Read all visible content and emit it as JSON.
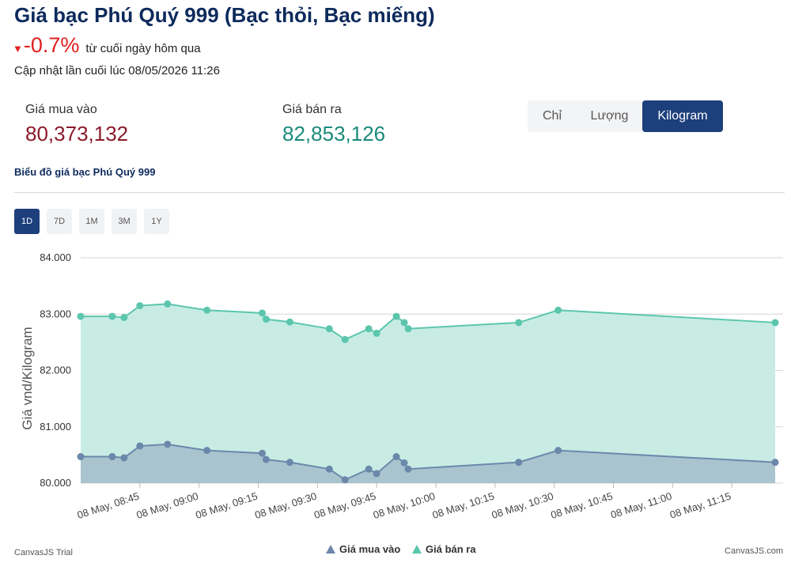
{
  "header": {
    "title": "Giá bạc Phú Quý 999 (Bạc thỏi, Bạc miếng)",
    "change_value": "-0.7%",
    "change_text": "từ cuối ngày hôm qua",
    "updated": "Cập nhật lần cuối lúc 08/05/2026 11:26"
  },
  "prices": {
    "buy_label": "Giá mua vào",
    "buy_value": "80,373,132",
    "sell_label": "Giá bán ra",
    "sell_value": "82,853,126"
  },
  "unit_switch": {
    "options": [
      "Chỉ",
      "Lượng",
      "Kilogram"
    ],
    "selected": "Kilogram"
  },
  "chart_caption": "Biểu đồ giá bạc Phú Quý 999",
  "range_buttons": {
    "options": [
      "1D",
      "7D",
      "1M",
      "3M",
      "1Y"
    ],
    "selected": "1D"
  },
  "watermarks": {
    "left": "CanvasJS Trial",
    "right": "CanvasJS.com"
  },
  "colors": {
    "buy_line": "#6b88ab",
    "buy_fill": "#a9c4cf",
    "sell_line": "#5cc6ad",
    "sell_fill": "#c8ece4",
    "accent": "#1d3f7c",
    "down": "#e02020"
  },
  "chart_data": {
    "type": "area",
    "ylabel": "Giá vnd/Kilogram",
    "ylim": [
      80000,
      84000
    ],
    "yticks": [
      "80.000",
      "81.000",
      "82.000",
      "83.000",
      "84.000"
    ],
    "ytick_values": [
      80000,
      81000,
      82000,
      83000,
      84000
    ],
    "xticks": [
      "08 May, 08:45",
      "08 May, 09:00",
      "08 May, 09:15",
      "08 May, 09:30",
      "08 May, 09:45",
      "08 May, 10:00",
      "08 May, 10:15",
      "08 May, 10:30",
      "08 May, 10:45",
      "08 May, 11:00",
      "08 May, 11:15"
    ],
    "xtick_minutes": [
      525,
      540,
      555,
      570,
      585,
      600,
      615,
      630,
      645,
      660,
      675
    ],
    "xlim": [
      "08:30",
      "11:26"
    ],
    "grid": true,
    "legend": "bottom-center",
    "x": [
      "08:30",
      "08:38",
      "08:38",
      "08:41",
      "08:45",
      "08:52",
      "09:02",
      "09:16",
      "09:17",
      "09:23",
      "09:33",
      "09:37",
      "09:43",
      "09:45",
      "09:50",
      "09:52",
      "09:53",
      "10:21",
      "10:31",
      "11:26"
    ],
    "series": [
      {
        "name": "Giá mua vào",
        "values": [
          80470,
          80470,
          80470,
          80450,
          80660,
          80690,
          80580,
          80530,
          80420,
          80370,
          80250,
          80060,
          80250,
          80170,
          80470,
          80360,
          80250,
          80370,
          80580,
          80370
        ]
      },
      {
        "name": "Giá bán ra",
        "values": [
          82960,
          82960,
          82960,
          82940,
          83150,
          83180,
          83070,
          83020,
          82910,
          82860,
          82740,
          82550,
          82740,
          82660,
          82960,
          82850,
          82740,
          82850,
          83070,
          82850
        ]
      }
    ]
  }
}
